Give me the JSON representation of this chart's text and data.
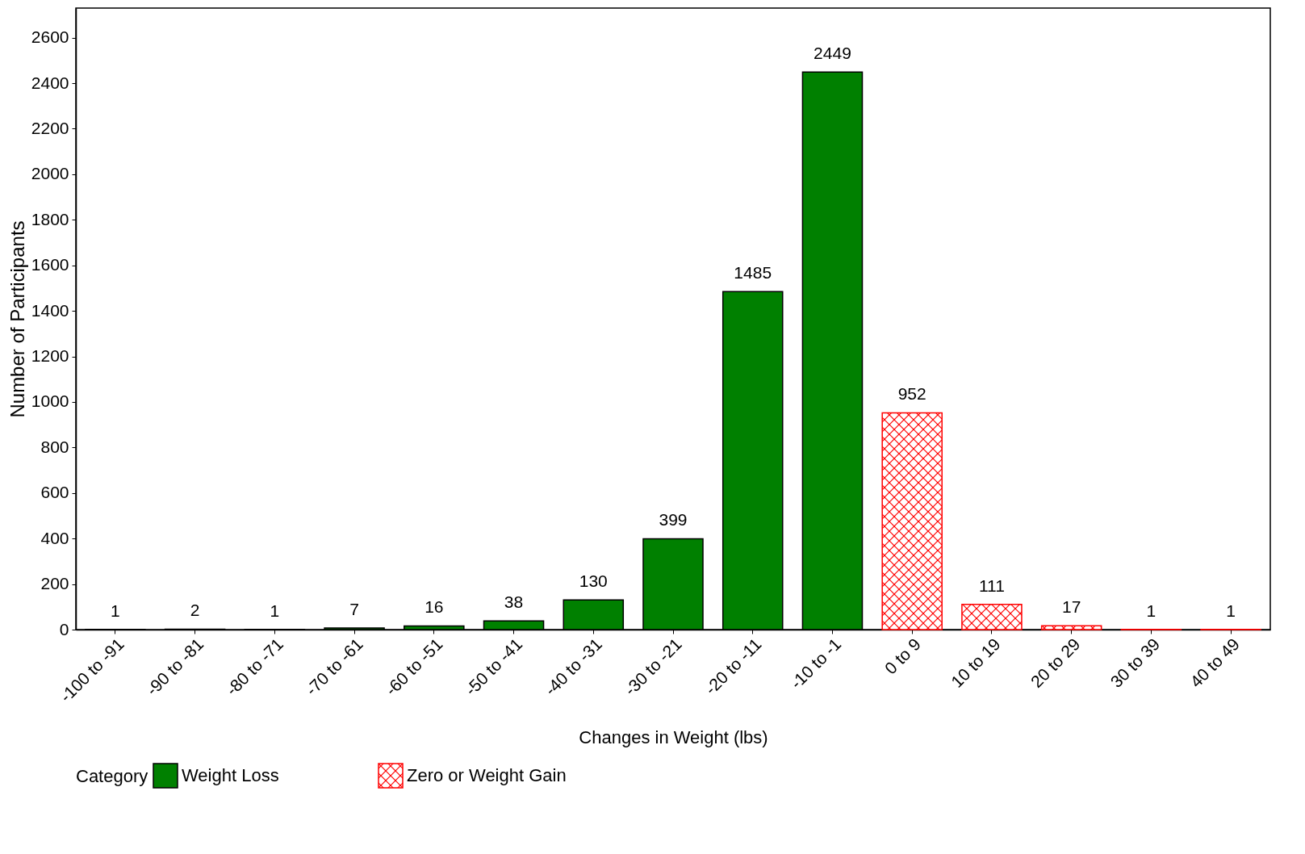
{
  "chart_data": {
    "type": "bar",
    "xlabel": "Changes in Weight (lbs)",
    "ylabel": "Number of Participants",
    "legend_title": "Category",
    "categories": [
      "-100 to -91",
      "-90 to -81",
      "-80 to -71",
      "-70 to -61",
      "-60 to -51",
      "-50 to -41",
      "-40 to -31",
      "-30 to -21",
      "-20 to -11",
      "-10 to -1",
      "0 to 9",
      "10 to 19",
      "20 to 29",
      "30 to 39",
      "40 to 49"
    ],
    "series": [
      {
        "name": "Weight Loss",
        "color": "#008000",
        "values": [
          1,
          2,
          1,
          7,
          16,
          38,
          130,
          399,
          1485,
          2449,
          null,
          null,
          null,
          null,
          null
        ]
      },
      {
        "name": "Zero or Weight Gain",
        "color": "#ff0000",
        "values": [
          null,
          null,
          null,
          null,
          null,
          null,
          null,
          null,
          null,
          null,
          952,
          111,
          17,
          1,
          1
        ]
      }
    ],
    "ylim": [
      0,
      2730
    ],
    "yticks": [
      0,
      200,
      400,
      600,
      800,
      1000,
      1200,
      1400,
      1600,
      1800,
      2000,
      2200,
      2400,
      2600
    ],
    "data_labels": true,
    "legend": "bottom",
    "grid": false
  }
}
